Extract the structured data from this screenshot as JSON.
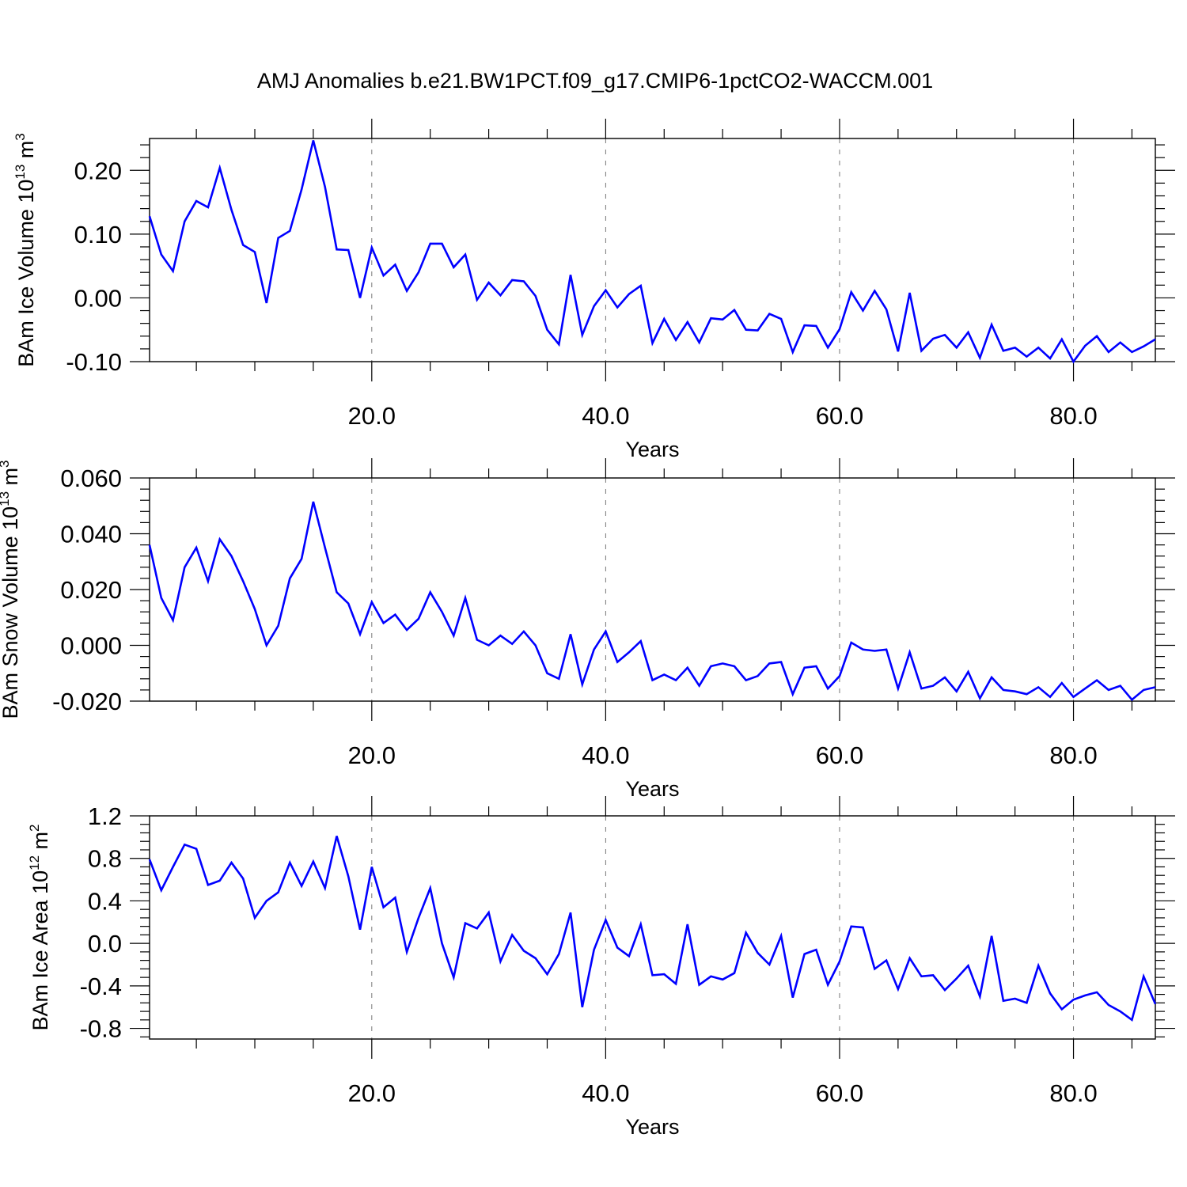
{
  "title": "AMJ Anomalies b.e21.BW1PCT.f09_g17.CMIP6-1pctCO2-WACCM.001",
  "chart_data": [
    {
      "type": "line",
      "ylabel": "BAm Ice Volume 10",
      "ylabel_exp": "13",
      "ylabel_unit": " m",
      "ylabel_unit_exp": "3",
      "xlabel": "Years",
      "xlim": [
        1,
        87
      ],
      "ylim": [
        -0.1,
        0.25
      ],
      "yticks": [
        -0.1,
        0.0,
        0.1,
        0.2
      ],
      "ytick_labels": [
        "-0.10",
        "0.00",
        "0.10",
        "0.20"
      ],
      "xticks": [
        20,
        40,
        60,
        80
      ],
      "xtick_labels": [
        "20.0",
        "40.0",
        "60.0",
        "80.0"
      ],
      "grid_x": "dashed vertical lines at major x ticks",
      "color": "#0000ff",
      "x": [
        1,
        2,
        3,
        4,
        5,
        6,
        7,
        8,
        9,
        10,
        11,
        12,
        13,
        14,
        15,
        16,
        17,
        18,
        19,
        20,
        21,
        22,
        23,
        24,
        25,
        26,
        27,
        28,
        29,
        30,
        31,
        32,
        33,
        34,
        35,
        36,
        37,
        38,
        39,
        40,
        41,
        42,
        43,
        44,
        45,
        46,
        47,
        48,
        49,
        50,
        51,
        52,
        53,
        54,
        55,
        56,
        57,
        58,
        59,
        60,
        61,
        62,
        63,
        64,
        65,
        66,
        67,
        68,
        69,
        70,
        71,
        72,
        73,
        74,
        75,
        76,
        77,
        78,
        79,
        80,
        81,
        82,
        83,
        84,
        85,
        86,
        87
      ],
      "y": [
        0.128,
        0.068,
        0.042,
        0.12,
        0.152,
        0.142,
        0.204,
        0.138,
        0.083,
        0.072,
        -0.008,
        0.094,
        0.105,
        0.17,
        0.247,
        0.174,
        0.076,
        0.075,
        0.0,
        0.079,
        0.035,
        0.052,
        0.011,
        0.04,
        0.085,
        0.085,
        0.048,
        0.068,
        -0.003,
        0.024,
        0.004,
        0.028,
        0.026,
        0.003,
        -0.05,
        -0.073,
        0.036,
        -0.058,
        -0.013,
        0.012,
        -0.015,
        0.006,
        0.019,
        -0.071,
        -0.033,
        -0.066,
        -0.038,
        -0.07,
        -0.032,
        -0.034,
        -0.019,
        -0.05,
        -0.051,
        -0.025,
        -0.033,
        -0.085,
        -0.043,
        -0.044,
        -0.078,
        -0.049,
        0.009,
        -0.02,
        0.011,
        -0.018,
        -0.084,
        0.008,
        -0.083,
        -0.064,
        -0.058,
        -0.078,
        -0.054,
        -0.094,
        -0.042,
        -0.083,
        -0.078,
        -0.092,
        -0.078,
        -0.095,
        -0.065,
        -0.1,
        -0.075,
        -0.06,
        -0.085,
        -0.07,
        -0.085,
        -0.076,
        -0.065
      ]
    },
    {
      "type": "line",
      "ylabel": "BAm Snow Volume 10",
      "ylabel_exp": "13",
      "ylabel_unit": " m",
      "ylabel_unit_exp": "3",
      "xlabel": "Years",
      "xlim": [
        1,
        87
      ],
      "ylim": [
        -0.02,
        0.06
      ],
      "yticks": [
        -0.02,
        0.0,
        0.02,
        0.04,
        0.06
      ],
      "ytick_labels": [
        "-0.020",
        "0.000",
        "0.020",
        "0.040",
        "0.060"
      ],
      "xticks": [
        20,
        40,
        60,
        80
      ],
      "xtick_labels": [
        "20.0",
        "40.0",
        "60.0",
        "80.0"
      ],
      "grid_x": "dashed vertical lines at major x ticks",
      "color": "#0000ff",
      "x": [
        1,
        2,
        3,
        4,
        5,
        6,
        7,
        8,
        9,
        10,
        11,
        12,
        13,
        14,
        15,
        16,
        17,
        18,
        19,
        20,
        21,
        22,
        23,
        24,
        25,
        26,
        27,
        28,
        29,
        30,
        31,
        32,
        33,
        34,
        35,
        36,
        37,
        38,
        39,
        40,
        41,
        42,
        43,
        44,
        45,
        46,
        47,
        48,
        49,
        50,
        51,
        52,
        53,
        54,
        55,
        56,
        57,
        58,
        59,
        60,
        61,
        62,
        63,
        64,
        65,
        66,
        67,
        68,
        69,
        70,
        71,
        72,
        73,
        74,
        75,
        76,
        77,
        78,
        79,
        80,
        81,
        82,
        83,
        84,
        85,
        86,
        87
      ],
      "y": [
        0.036,
        0.017,
        0.009,
        0.028,
        0.035,
        0.023,
        0.038,
        0.032,
        0.023,
        0.013,
        0.0,
        0.007,
        0.024,
        0.031,
        0.0515,
        0.035,
        0.019,
        0.015,
        0.004,
        0.0155,
        0.008,
        0.011,
        0.0055,
        0.0095,
        0.019,
        0.012,
        0.0035,
        0.017,
        0.002,
        0.0,
        0.0035,
        0.0005,
        0.005,
        0.0,
        -0.01,
        -0.012,
        0.004,
        -0.014,
        -0.0015,
        0.005,
        -0.006,
        -0.0025,
        0.0015,
        -0.0125,
        -0.0105,
        -0.0125,
        -0.008,
        -0.0145,
        -0.0075,
        -0.0065,
        -0.0075,
        -0.0125,
        -0.011,
        -0.0065,
        -0.006,
        -0.0175,
        -0.008,
        -0.0075,
        -0.0155,
        -0.011,
        0.001,
        -0.0015,
        -0.002,
        -0.0015,
        -0.0155,
        -0.0025,
        -0.0155,
        -0.0145,
        -0.0115,
        -0.0165,
        -0.0095,
        -0.019,
        -0.0115,
        -0.016,
        -0.0165,
        -0.0175,
        -0.015,
        -0.0185,
        -0.0135,
        -0.0185,
        -0.0155,
        -0.0125,
        -0.016,
        -0.0145,
        -0.0195,
        -0.016,
        -0.015
      ]
    },
    {
      "type": "line",
      "ylabel": "BAm Ice Area 10",
      "ylabel_exp": "12",
      "ylabel_unit": " m",
      "ylabel_unit_exp": "2",
      "xlabel": "Years",
      "xlim": [
        1,
        87
      ],
      "ylim": [
        -0.9,
        1.2
      ],
      "yticks": [
        -0.8,
        -0.4,
        0.0,
        0.4,
        0.8,
        1.2
      ],
      "ytick_labels": [
        "-0.8",
        "-0.4",
        "0.0",
        "0.4",
        "0.8",
        "1.2"
      ],
      "xticks": [
        20,
        40,
        60,
        80
      ],
      "xtick_labels": [
        "20.0",
        "40.0",
        "60.0",
        "80.0"
      ],
      "grid_x": "dashed vertical lines at major x ticks",
      "color": "#0000ff",
      "x": [
        1,
        2,
        3,
        4,
        5,
        6,
        7,
        8,
        9,
        10,
        11,
        12,
        13,
        14,
        15,
        16,
        17,
        18,
        19,
        20,
        21,
        22,
        23,
        24,
        25,
        26,
        27,
        28,
        29,
        30,
        31,
        32,
        33,
        34,
        35,
        36,
        37,
        38,
        39,
        40,
        41,
        42,
        43,
        44,
        45,
        46,
        47,
        48,
        49,
        50,
        51,
        52,
        53,
        54,
        55,
        56,
        57,
        58,
        59,
        60,
        61,
        62,
        63,
        64,
        65,
        66,
        67,
        68,
        69,
        70,
        71,
        72,
        73,
        74,
        75,
        76,
        77,
        78,
        79,
        80,
        81,
        82,
        83,
        84,
        85,
        86,
        87
      ],
      "y": [
        0.79,
        0.5,
        0.72,
        0.93,
        0.89,
        0.55,
        0.59,
        0.76,
        0.61,
        0.24,
        0.4,
        0.48,
        0.76,
        0.54,
        0.77,
        0.52,
        1.01,
        0.63,
        0.13,
        0.72,
        0.34,
        0.43,
        -0.08,
        0.24,
        0.52,
        0.0,
        -0.32,
        0.19,
        0.14,
        0.29,
        -0.17,
        0.08,
        -0.07,
        -0.14,
        -0.29,
        -0.1,
        0.29,
        -0.6,
        -0.06,
        0.22,
        -0.04,
        -0.12,
        0.18,
        -0.3,
        -0.29,
        -0.38,
        0.18,
        -0.39,
        -0.31,
        -0.34,
        -0.28,
        0.1,
        -0.09,
        -0.2,
        0.07,
        -0.51,
        -0.1,
        -0.06,
        -0.39,
        -0.17,
        0.16,
        0.15,
        -0.24,
        -0.16,
        -0.43,
        -0.14,
        -0.31,
        -0.3,
        -0.44,
        -0.33,
        -0.21,
        -0.5,
        0.07,
        -0.54,
        -0.52,
        -0.56,
        -0.21,
        -0.47,
        -0.62,
        -0.53,
        -0.49,
        -0.46,
        -0.58,
        -0.64,
        -0.72,
        -0.31,
        -0.57
      ]
    }
  ]
}
